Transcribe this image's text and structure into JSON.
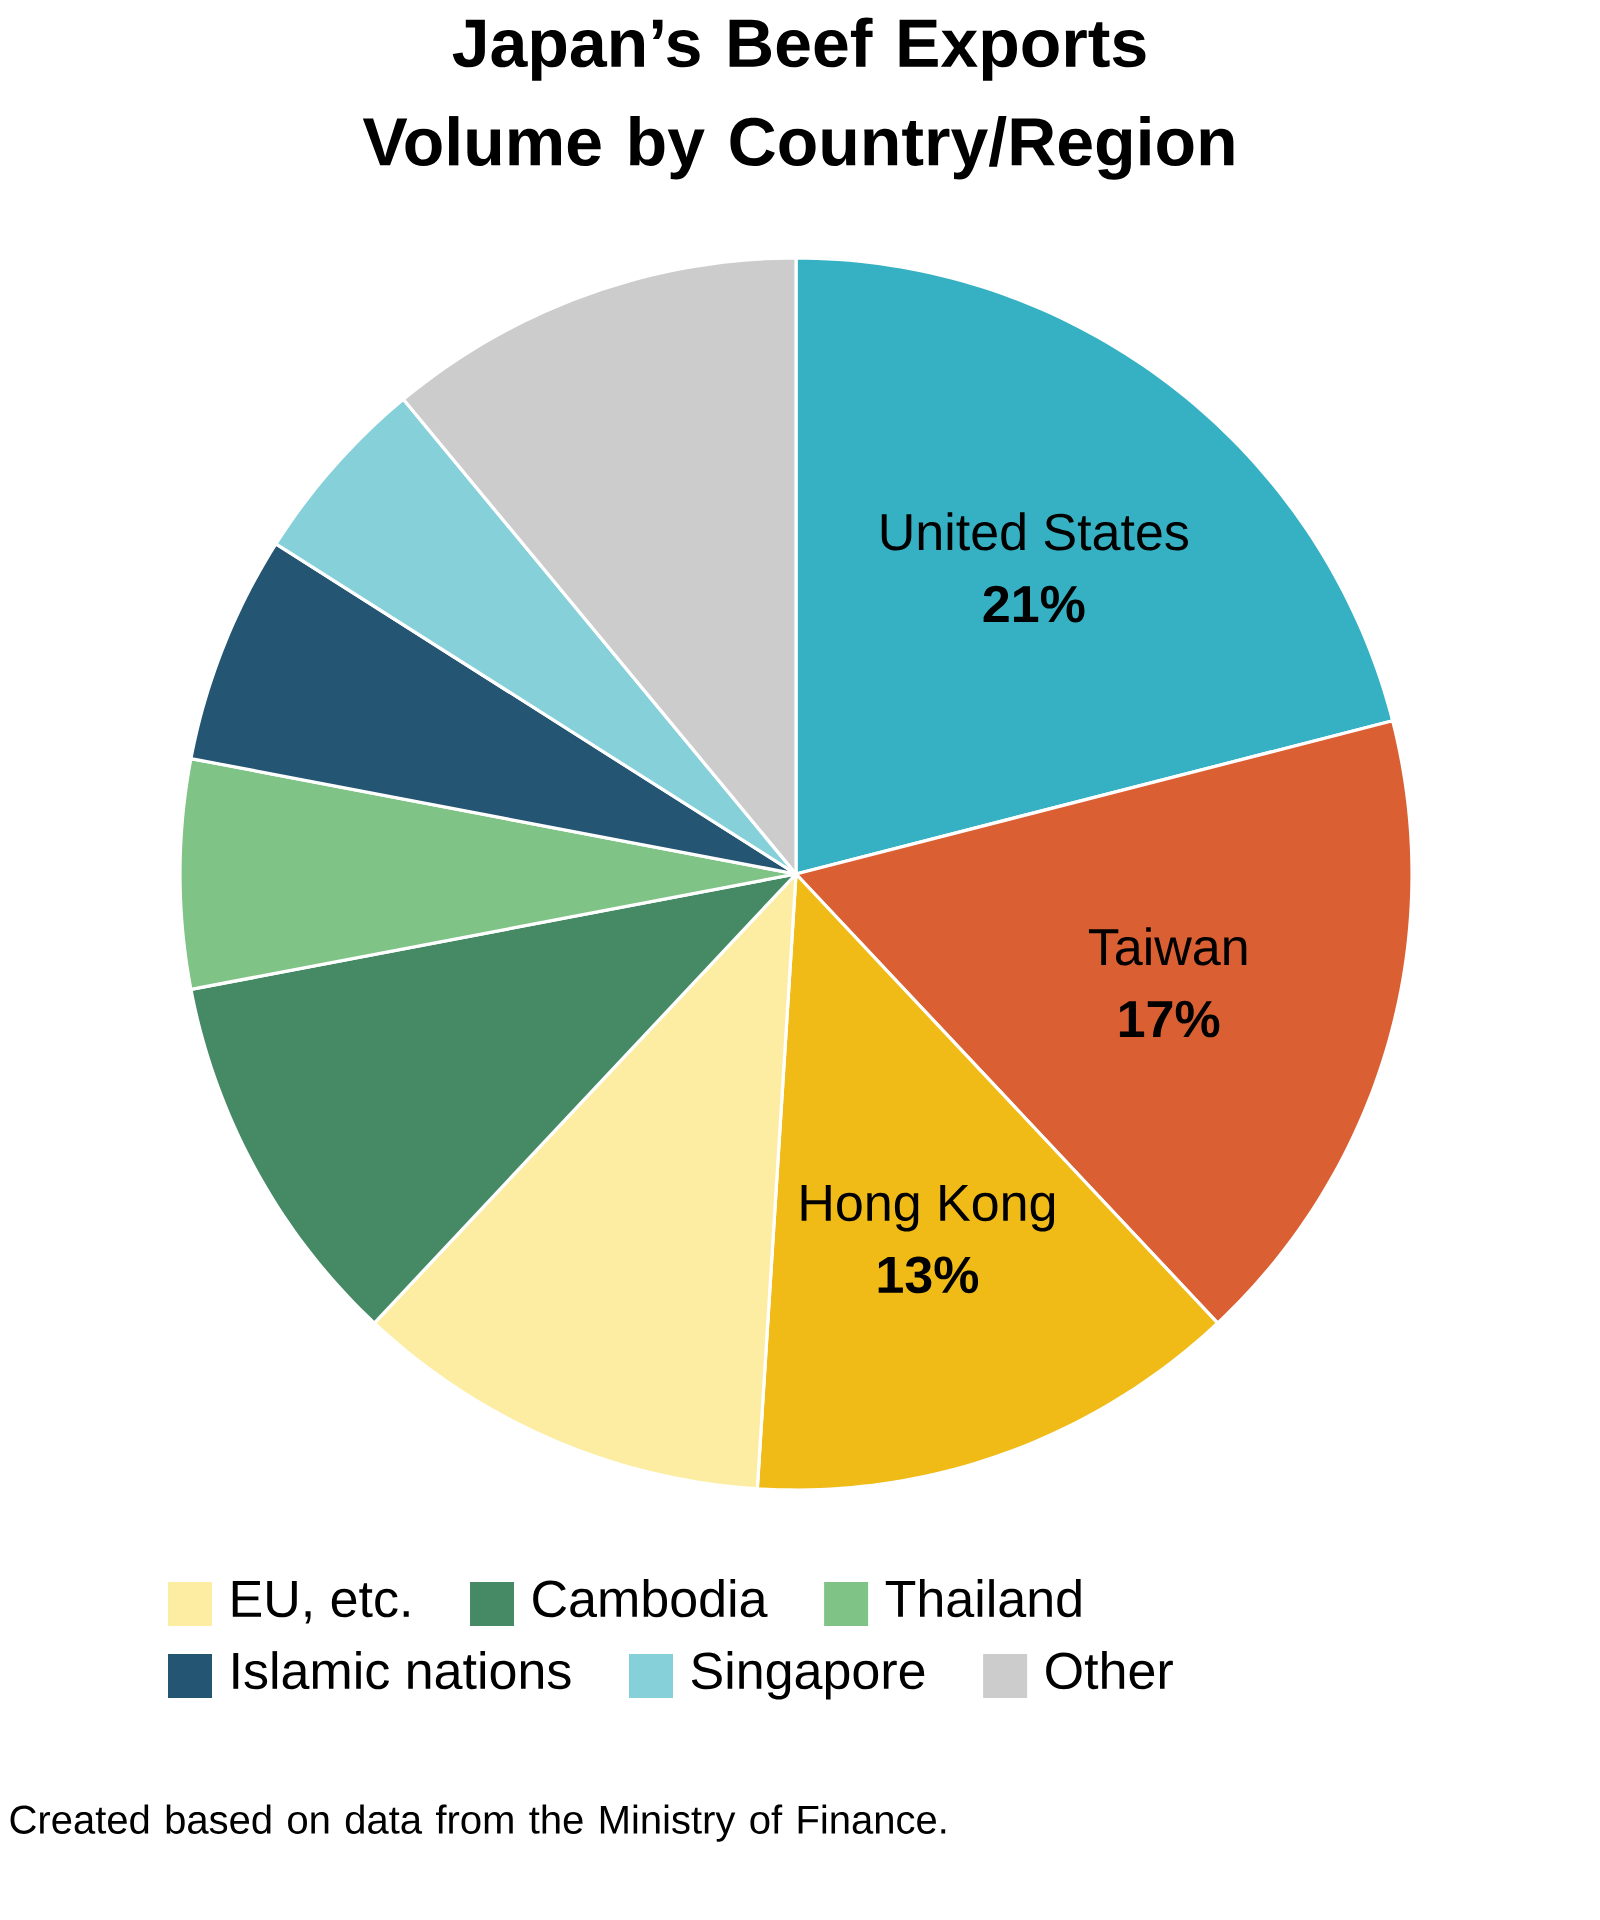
{
  "chart_data": {
    "type": "pie",
    "title": "Japan’s Beef Exports Volume by Country/Region",
    "categories": [
      "United States",
      "Taiwan",
      "Hong Kong",
      "EU, etc.",
      "Cambodia",
      "Thailand",
      "Islamic nations",
      "Singapore",
      "Other"
    ],
    "values": [
      21,
      17,
      13,
      11,
      10,
      6,
      6,
      5,
      11
    ],
    "value_labels": [
      "21%",
      "17%",
      "13%",
      null,
      null,
      null,
      null,
      null,
      null
    ],
    "colors": [
      "#35b1c3",
      "#da5f33",
      "#f0ba17",
      "#fdeda2",
      "#468a65",
      "#80c386",
      "#245573",
      "#86d0da",
      "#cccccc"
    ],
    "legend": "bottom",
    "annotations": [
      "Created based on data from the Ministry of Finance."
    ]
  }
}
